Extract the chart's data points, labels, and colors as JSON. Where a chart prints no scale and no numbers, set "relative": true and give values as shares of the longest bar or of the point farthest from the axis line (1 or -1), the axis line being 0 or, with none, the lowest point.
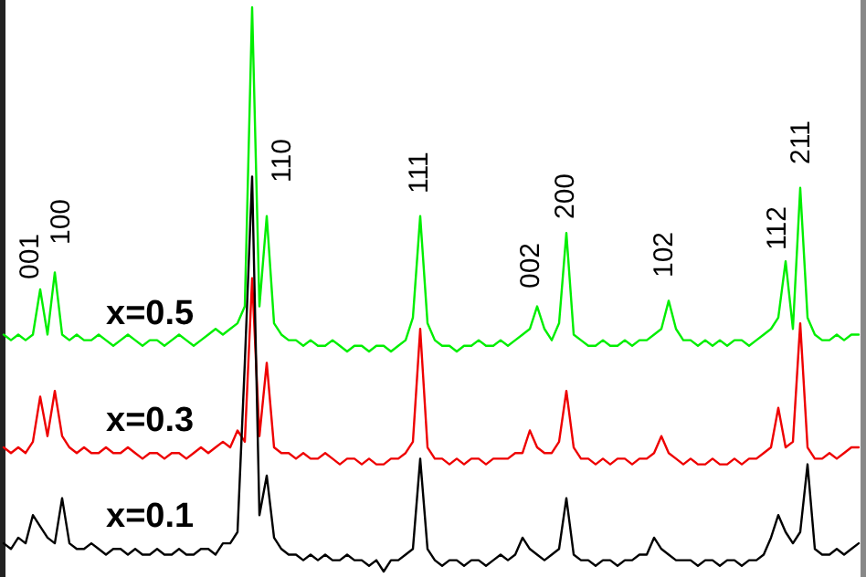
{
  "chart_data": {
    "type": "line",
    "relative": true,
    "categories": [
      null,
      null,
      null,
      null,
      null,
      null,
      null,
      null,
      null,
      null,
      null,
      null,
      null,
      null,
      null,
      null,
      null,
      null,
      null,
      null,
      null,
      null,
      null,
      null,
      null,
      null,
      null,
      null,
      null,
      null,
      null,
      null,
      null,
      null,
      null,
      null,
      null,
      null,
      null,
      null,
      null,
      null,
      null,
      null,
      null,
      null,
      null,
      null,
      null,
      null,
      null,
      null,
      null,
      null,
      null,
      null,
      null,
      null,
      null,
      null,
      null,
      null,
      null,
      null,
      null,
      null,
      null,
      null,
      null,
      null,
      null,
      null,
      null,
      null,
      null,
      null,
      null,
      null,
      null,
      null,
      null,
      null,
      null,
      null,
      null,
      null,
      null,
      null,
      null,
      null,
      null,
      null,
      null,
      null,
      null,
      null,
      null,
      null,
      null,
      null,
      null,
      null,
      null,
      null,
      null,
      null,
      null,
      null,
      null,
      null,
      null,
      null,
      null,
      null,
      null,
      null,
      null,
      null
    ],
    "series": [
      {
        "name": "x=0.5",
        "color": "#00ee00",
        "values": [
          0.42,
          0.41,
          0.42,
          0.41,
          0.42,
          0.5,
          0.42,
          0.53,
          0.42,
          0.41,
          0.42,
          0.41,
          0.41,
          0.42,
          0.41,
          0.4,
          0.41,
          0.42,
          0.41,
          0.4,
          0.41,
          0.41,
          0.4,
          0.41,
          0.42,
          0.41,
          0.4,
          0.41,
          0.42,
          0.43,
          0.42,
          0.43,
          0.44,
          0.47,
          1.0,
          0.47,
          0.63,
          0.44,
          0.42,
          0.41,
          0.41,
          0.4,
          0.41,
          0.4,
          0.4,
          0.41,
          0.4,
          0.39,
          0.4,
          0.4,
          0.39,
          0.4,
          0.4,
          0.39,
          0.4,
          0.41,
          0.45,
          0.63,
          0.44,
          0.41,
          0.4,
          0.4,
          0.39,
          0.4,
          0.4,
          0.41,
          0.4,
          0.4,
          0.41,
          0.4,
          0.41,
          0.42,
          0.43,
          0.47,
          0.43,
          0.41,
          0.44,
          0.6,
          0.42,
          0.41,
          0.4,
          0.4,
          0.41,
          0.4,
          0.4,
          0.41,
          0.4,
          0.41,
          0.41,
          0.42,
          0.43,
          0.48,
          0.43,
          0.41,
          0.41,
          0.4,
          0.41,
          0.4,
          0.41,
          0.4,
          0.41,
          0.41,
          0.4,
          0.41,
          0.42,
          0.43,
          0.45,
          0.55,
          0.43,
          0.68,
          0.45,
          0.42,
          0.41,
          0.41,
          0.42,
          0.41,
          0.42,
          0.42
        ]
      },
      {
        "name": "x=0.3",
        "color": "#ee0000",
        "values": [
          0.22,
          0.21,
          0.22,
          0.21,
          0.23,
          0.31,
          0.24,
          0.32,
          0.24,
          0.22,
          0.21,
          0.22,
          0.21,
          0.21,
          0.22,
          0.21,
          0.21,
          0.22,
          0.21,
          0.2,
          0.21,
          0.21,
          0.2,
          0.21,
          0.21,
          0.2,
          0.21,
          0.22,
          0.21,
          0.22,
          0.23,
          0.22,
          0.25,
          0.23,
          0.52,
          0.24,
          0.37,
          0.22,
          0.21,
          0.21,
          0.2,
          0.21,
          0.2,
          0.2,
          0.21,
          0.2,
          0.19,
          0.2,
          0.2,
          0.19,
          0.2,
          0.19,
          0.19,
          0.2,
          0.2,
          0.21,
          0.23,
          0.43,
          0.22,
          0.2,
          0.2,
          0.19,
          0.2,
          0.19,
          0.2,
          0.2,
          0.19,
          0.2,
          0.2,
          0.2,
          0.21,
          0.21,
          0.25,
          0.22,
          0.21,
          0.21,
          0.23,
          0.32,
          0.22,
          0.2,
          0.2,
          0.19,
          0.2,
          0.19,
          0.2,
          0.2,
          0.19,
          0.2,
          0.2,
          0.21,
          0.24,
          0.21,
          0.2,
          0.19,
          0.2,
          0.19,
          0.19,
          0.2,
          0.19,
          0.19,
          0.2,
          0.19,
          0.2,
          0.2,
          0.21,
          0.22,
          0.29,
          0.22,
          0.23,
          0.44,
          0.22,
          0.2,
          0.2,
          0.21,
          0.2,
          0.21,
          0.22,
          0.22
        ]
      },
      {
        "name": "x=0.1",
        "color": "#000000",
        "values": [
          0.05,
          0.04,
          0.06,
          0.05,
          0.1,
          0.08,
          0.06,
          0.05,
          0.13,
          0.05,
          0.04,
          0.04,
          0.05,
          0.04,
          0.03,
          0.04,
          0.04,
          0.03,
          0.04,
          0.03,
          0.03,
          0.04,
          0.03,
          0.03,
          0.04,
          0.03,
          0.03,
          0.04,
          0.04,
          0.03,
          0.05,
          0.05,
          0.07,
          0.37,
          0.7,
          0.1,
          0.17,
          0.06,
          0.04,
          0.03,
          0.03,
          0.02,
          0.03,
          0.02,
          0.03,
          0.02,
          0.02,
          0.03,
          0.02,
          0.02,
          0.01,
          0.02,
          0.0,
          0.02,
          0.02,
          0.03,
          0.04,
          0.2,
          0.04,
          0.02,
          0.01,
          0.02,
          0.02,
          0.01,
          0.02,
          0.02,
          0.01,
          0.02,
          0.03,
          0.02,
          0.03,
          0.06,
          0.04,
          0.03,
          0.02,
          0.03,
          0.04,
          0.13,
          0.03,
          0.02,
          0.02,
          0.01,
          0.02,
          0.02,
          0.01,
          0.02,
          0.02,
          0.03,
          0.03,
          0.06,
          0.04,
          0.03,
          0.02,
          0.02,
          0.02,
          0.01,
          0.02,
          0.02,
          0.01,
          0.02,
          0.02,
          0.01,
          0.02,
          0.02,
          0.03,
          0.06,
          0.1,
          0.07,
          0.05,
          0.07,
          0.19,
          0.04,
          0.03,
          0.03,
          0.04,
          0.03,
          0.04,
          0.05
        ]
      }
    ],
    "annotations": [
      "001",
      "100",
      "110",
      "111",
      "002",
      "200",
      "102",
      "112",
      "211"
    ]
  }
}
